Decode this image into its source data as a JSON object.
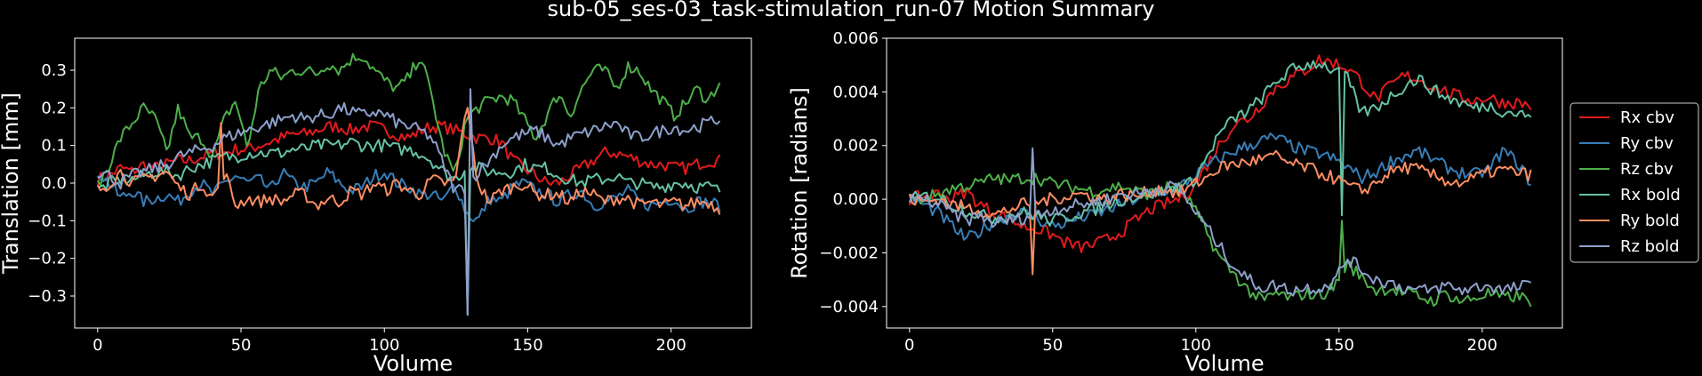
{
  "title": "sub-05_ses-03_task-stimulation_run-07 Motion Summary",
  "chart_data": [
    {
      "type": "line",
      "xlabel": "Volume",
      "ylabel": "Translation [mm]",
      "xlim": [
        -8,
        228
      ],
      "ylim": [
        -0.385,
        0.385
      ],
      "xticks": [
        "0",
        "50",
        "100",
        "150",
        "200"
      ],
      "yticks": [
        "−0.3",
        "−0.2",
        "−0.1",
        "0.0",
        "0.1",
        "0.2",
        "0.3"
      ],
      "n_volumes": 218,
      "series": [
        {
          "name": "Rx cbv",
          "color": "#e41a1c",
          "values": [
            0.01,
            0.02,
            0.04,
            0.03,
            0.05,
            0.04,
            0.05,
            0.06,
            0.06,
            0.07,
            0.08,
            0.08,
            0.09,
            0.09,
            0.1,
            0.11,
            0.12,
            0.13,
            0.13,
            0.14,
            0.15,
            0.15,
            0.14,
            0.15,
            0.15,
            0.14,
            0.13,
            0.12,
            0.14,
            0.15,
            0.15,
            0.14,
            0.13,
            0.12,
            0.12,
            0.11,
            0.06,
            0.04,
            0.02,
            0.0,
            0.0,
            0.02,
            0.04,
            0.06,
            0.08,
            0.08,
            0.07,
            0.06,
            0.05,
            0.05,
            0.04,
            0.04,
            0.05,
            0.06,
            0.06
          ]
        },
        {
          "name": "Ry cbv",
          "color": "#377eb8",
          "values": [
            0.03,
            0.0,
            -0.04,
            -0.02,
            -0.05,
            -0.04,
            -0.03,
            -0.05,
            -0.02,
            0.0,
            -0.03,
            0.0,
            0.02,
            0.0,
            0.01,
            -0.02,
            0.03,
            0.0,
            -0.01,
            0.0,
            0.03,
            0.0,
            -0.02,
            -0.01,
            0.02,
            0.03,
            0.0,
            -0.01,
            -0.03,
            -0.03,
            -0.05,
            0.0,
            -0.08,
            -0.1,
            -0.04,
            -0.05,
            -0.01,
            0.0,
            -0.02,
            -0.03,
            -0.05,
            -0.03,
            -0.02,
            -0.06,
            -0.05,
            -0.04,
            -0.02,
            -0.05,
            -0.06,
            -0.05,
            -0.04,
            -0.07,
            -0.05,
            -0.05,
            -0.06
          ]
        },
        {
          "name": "Rz cbv",
          "color": "#4daf4a",
          "values": [
            -0.01,
            0.05,
            0.12,
            0.16,
            0.2,
            0.17,
            0.08,
            0.2,
            0.12,
            0.12,
            0.07,
            0.17,
            0.22,
            0.09,
            0.25,
            0.3,
            0.28,
            0.3,
            0.3,
            0.29,
            0.32,
            0.3,
            0.33,
            0.34,
            0.3,
            0.27,
            0.25,
            0.28,
            0.34,
            0.23,
            0.09,
            0.02,
            0.17,
            0.2,
            0.22,
            0.23,
            0.22,
            0.17,
            0.12,
            0.18,
            0.24,
            0.18,
            0.25,
            0.3,
            0.3,
            0.25,
            0.31,
            0.3,
            0.25,
            0.22,
            0.18,
            0.21,
            0.25,
            0.22,
            0.27
          ]
        },
        {
          "name": "Rx bold",
          "color": "#66c2a5",
          "values": [
            -0.02,
            0.0,
            0.01,
            0.01,
            0.02,
            0.03,
            0.03,
            0.02,
            0.04,
            0.05,
            0.06,
            0.07,
            0.07,
            0.08,
            0.08,
            0.08,
            0.08,
            0.09,
            0.09,
            0.1,
            0.1,
            0.1,
            0.11,
            0.1,
            0.1,
            0.1,
            0.09,
            0.09,
            0.08,
            0.06,
            0.03,
            0.01,
            0.04,
            0.04,
            0.03,
            0.03,
            0.03,
            0.05,
            0.04,
            0.04,
            0.02,
            0.01,
            0.0,
            0.01,
            0.01,
            0.02,
            0.0,
            0.0,
            -0.01,
            -0.01,
            0.0,
            0.0,
            -0.01,
            -0.01,
            -0.02
          ]
        },
        {
          "name": "Ry bold",
          "color": "#fc8d62",
          "values": [
            -0.02,
            0.0,
            0.03,
            0.0,
            0.01,
            0.02,
            0.03,
            -0.01,
            -0.03,
            0.0,
            -0.04,
            0.03,
            -0.06,
            -0.04,
            -0.05,
            -0.04,
            -0.05,
            -0.03,
            -0.03,
            -0.06,
            -0.04,
            -0.05,
            -0.02,
            -0.03,
            0.0,
            -0.02,
            0.0,
            -0.02,
            -0.03,
            0.01,
            0.0,
            0.0,
            0.2,
            0.0,
            -0.05,
            -0.02,
            -0.01,
            0.0,
            -0.03,
            -0.03,
            -0.03,
            -0.05,
            -0.02,
            -0.03,
            -0.05,
            -0.04,
            -0.04,
            -0.06,
            -0.05,
            -0.06,
            -0.05,
            -0.06,
            -0.05,
            -0.05,
            -0.07
          ]
        },
        {
          "name": "Rz bold",
          "color": "#8da0cb",
          "values": [
            0.03,
            0.02,
            0.0,
            0.02,
            0.03,
            0.04,
            0.05,
            0.07,
            0.08,
            0.09,
            0.1,
            0.12,
            0.13,
            0.14,
            0.15,
            0.16,
            0.17,
            0.18,
            0.17,
            0.18,
            0.18,
            0.2,
            0.19,
            0.18,
            0.19,
            0.18,
            0.16,
            0.15,
            0.14,
            0.12,
            0.05,
            -0.02,
            -0.01,
            0.03,
            0.06,
            0.1,
            0.12,
            0.13,
            0.14,
            0.12,
            0.1,
            0.12,
            0.13,
            0.14,
            0.15,
            0.16,
            0.13,
            0.12,
            0.13,
            0.14,
            0.15,
            0.14,
            0.15,
            0.16,
            0.17
          ]
        }
      ],
      "spikes": [
        {
          "series": "Rx bold",
          "volume": 129,
          "value": -0.35
        },
        {
          "series": "Rz bold",
          "volume": 129,
          "value": -0.35
        },
        {
          "series": "Ry bold",
          "volume": 129,
          "value": 0.2
        },
        {
          "series": "Rz bold",
          "volume": 130,
          "value": 0.25
        },
        {
          "series": "Ry bold",
          "volume": 43,
          "value": 0.16
        }
      ]
    },
    {
      "type": "line",
      "xlabel": "Volume",
      "ylabel": "Rotation [radians]",
      "xlim": [
        -8,
        228
      ],
      "ylim": [
        -0.0048,
        0.006
      ],
      "xticks": [
        "0",
        "50",
        "100",
        "150",
        "200"
      ],
      "yticks": [
        "−0.004",
        "−0.002",
        "0.000",
        "0.002",
        "0.004",
        "0.006"
      ],
      "n_volumes": 218,
      "legend": "right",
      "series": [
        {
          "name": "Rx cbv",
          "color": "#e41a1c",
          "values": [
            0.0,
            0.0001,
            0.0002,
            0.0,
            0.0003,
            -0.0002,
            -0.0005,
            -0.0007,
            -0.001,
            -0.0011,
            -0.0013,
            -0.0016,
            -0.0018,
            -0.0017,
            -0.0015,
            -0.0012,
            -0.0008,
            -0.0004,
            -0.0002,
            0.0,
            0.0004,
            0.0012,
            0.0021,
            0.0028,
            0.003,
            0.0036,
            0.0042,
            0.0045,
            0.0048,
            0.0052,
            0.0051,
            0.0049,
            0.0044,
            0.0037,
            0.0042,
            0.0046,
            0.0045,
            0.0042,
            0.004,
            0.0038,
            0.0037,
            0.0038,
            0.0036,
            0.0036,
            0.0035
          ]
        },
        {
          "name": "Ry cbv",
          "color": "#377eb8",
          "values": [
            0.0,
            -0.0002,
            -0.0005,
            -0.001,
            -0.0015,
            -0.0012,
            -0.0008,
            -0.0006,
            -0.0005,
            -0.0007,
            -0.001,
            -0.0009,
            -0.0007,
            -0.0006,
            -0.0004,
            -0.0002,
            0.0,
            0.0002,
            0.0003,
            0.0004,
            0.0008,
            0.0012,
            0.0015,
            0.0018,
            0.002,
            0.0022,
            0.0023,
            0.002,
            0.0018,
            0.0017,
            0.0015,
            0.0012,
            0.0008,
            0.001,
            0.0014,
            0.0016,
            0.0018,
            0.0015,
            0.0012,
            0.001,
            0.0009,
            0.0011,
            0.0018,
            0.0014,
            0.0006
          ]
        },
        {
          "name": "Rz cbv",
          "color": "#4daf4a",
          "values": [
            0.0,
            0.0,
            0.0002,
            0.0004,
            0.0005,
            0.0006,
            0.0008,
            0.0007,
            0.0008,
            0.0008,
            0.0006,
            0.0005,
            0.0004,
            0.0003,
            0.0004,
            0.0005,
            0.0003,
            0.0002,
            0.0004,
            0.0005,
            -0.0002,
            -0.0012,
            -0.0022,
            -0.0028,
            -0.0034,
            -0.0038,
            -0.0035,
            -0.0037,
            -0.0035,
            -0.0036,
            -0.0033,
            -0.0024,
            -0.0029,
            -0.0034,
            -0.0033,
            -0.0035,
            -0.0036,
            -0.0038,
            -0.0035,
            -0.0038,
            -0.0037,
            -0.0035,
            -0.0037,
            -0.0036,
            -0.0038
          ]
        },
        {
          "name": "Rx bold",
          "color": "#66c2a5",
          "values": [
            0.0,
            0.0001,
            0.0001,
            -0.0002,
            -0.0004,
            -0.0006,
            -0.0007,
            -0.0006,
            -0.0005,
            -0.0006,
            -0.0008,
            -0.0007,
            -0.0005,
            -0.0004,
            -0.0002,
            0.0,
            0.0001,
            0.0002,
            0.0003,
            0.0005,
            0.0006,
            0.0015,
            0.0025,
            0.003,
            0.0033,
            0.0038,
            0.0044,
            0.0048,
            0.005,
            0.0051,
            0.0048,
            0.0045,
            0.0032,
            0.0034,
            0.0038,
            0.0042,
            0.0045,
            0.0041,
            0.0038,
            0.0036,
            0.0034,
            0.0035,
            0.0033,
            0.0032,
            0.0031
          ]
        },
        {
          "name": "Ry bold",
          "color": "#fc8d62",
          "values": [
            0.0,
            -0.0001,
            0.0,
            -0.0002,
            -0.0003,
            -0.0004,
            -0.0006,
            -0.0004,
            -0.0002,
            -0.0001,
            0.0,
            0.0001,
            0.0002,
            0.0001,
            0.0,
            0.0002,
            0.0001,
            0.0003,
            0.0004,
            0.0002,
            0.0005,
            0.0008,
            0.0012,
            0.0013,
            0.0014,
            0.0015,
            0.0016,
            0.0013,
            0.0012,
            0.001,
            0.0008,
            0.0005,
            0.0003,
            0.0006,
            0.001,
            0.0012,
            0.0011,
            0.0009,
            0.0007,
            0.0006,
            0.0008,
            0.001,
            0.0011,
            0.001,
            0.0009
          ]
        },
        {
          "name": "Rz bold",
          "color": "#8da0cb",
          "values": [
            0.0,
            0.0,
            -0.0002,
            -0.0005,
            -0.0008,
            -0.0006,
            -0.0009,
            -0.0008,
            -0.0007,
            -0.0006,
            -0.0004,
            -0.0003,
            -0.0002,
            -0.0001,
            0.0,
            0.0002,
            0.0002,
            0.0003,
            0.0004,
            0.0005,
            -0.0003,
            -0.001,
            -0.0018,
            -0.0025,
            -0.003,
            -0.0033,
            -0.0032,
            -0.0034,
            -0.0033,
            -0.0033,
            -0.0031,
            -0.0022,
            -0.0026,
            -0.003,
            -0.0031,
            -0.0033,
            -0.0034,
            -0.0034,
            -0.0032,
            -0.0034,
            -0.0033,
            -0.0032,
            -0.0034,
            -0.0033,
            -0.0032
          ]
        }
      ],
      "spikes": [
        {
          "series": "Rz bold",
          "volume": 43,
          "value": 0.0019
        },
        {
          "series": "Ry bold",
          "volume": 43,
          "value": -0.0028
        },
        {
          "series": "Rx bold",
          "volume": 151,
          "value": -0.0006
        },
        {
          "series": "Rz cbv",
          "volume": 151,
          "value": -0.0008
        }
      ]
    }
  ]
}
